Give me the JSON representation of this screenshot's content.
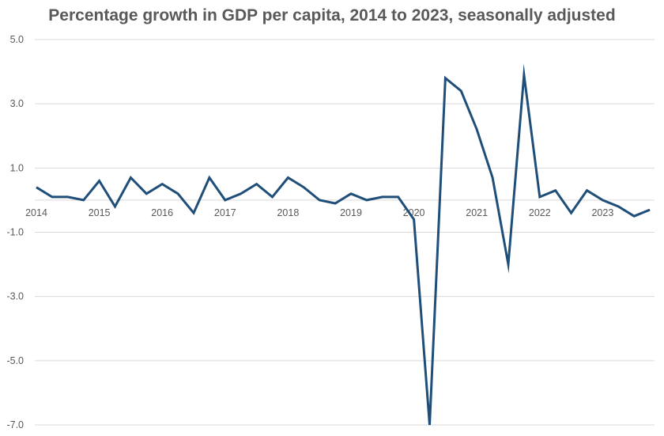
{
  "chart_data": {
    "type": "line",
    "title": "Percentage growth in GDP per capita, 2014 to 2023, seasonally adjusted",
    "xlabel": "",
    "ylabel": "",
    "ylim": [
      -7.0,
      5.0
    ],
    "y_ticks": [
      5.0,
      3.0,
      1.0,
      -1.0,
      -3.0,
      -5.0,
      -7.0
    ],
    "y_tick_labels": [
      "5.0",
      "3.0",
      "1.0",
      "-1.0",
      "-3.0",
      "-5.0",
      "-7.0"
    ],
    "x_tick_labels": [
      "2014",
      "2015",
      "2016",
      "2017",
      "2018",
      "2019",
      "2020",
      "2021",
      "2022",
      "2023"
    ],
    "grid": "horizontal",
    "legend": "none",
    "line_color": "#1F4E79",
    "x": [
      "2014 Q1",
      "2014 Q2",
      "2014 Q3",
      "2014 Q4",
      "2015 Q1",
      "2015 Q2",
      "2015 Q3",
      "2015 Q4",
      "2016 Q1",
      "2016 Q2",
      "2016 Q3",
      "2016 Q4",
      "2017 Q1",
      "2017 Q2",
      "2017 Q3",
      "2017 Q4",
      "2018 Q1",
      "2018 Q2",
      "2018 Q3",
      "2018 Q4",
      "2019 Q1",
      "2019 Q2",
      "2019 Q3",
      "2019 Q4",
      "2020 Q1",
      "2020 Q2",
      "2020 Q3",
      "2020 Q4",
      "2021 Q1",
      "2021 Q2",
      "2021 Q3",
      "2021 Q4",
      "2022 Q1",
      "2022 Q2",
      "2022 Q3",
      "2022 Q4",
      "2023 Q1",
      "2023 Q2",
      "2023 Q3",
      "2023 Q4"
    ],
    "series": [
      {
        "values": [
          0.4,
          0.1,
          0.1,
          0.0,
          0.6,
          -0.2,
          0.7,
          0.2,
          0.5,
          0.2,
          -0.4,
          0.7,
          0.0,
          0.2,
          0.5,
          0.1,
          0.7,
          0.4,
          0.0,
          -0.1,
          0.2,
          0.0,
          0.1,
          0.1,
          -0.6,
          -7.0,
          3.8,
          3.4,
          2.2,
          0.7,
          -2.0,
          3.9,
          0.1,
          0.3,
          -0.4,
          0.3,
          0.0,
          -0.2,
          -0.5,
          -0.3
        ]
      }
    ]
  }
}
